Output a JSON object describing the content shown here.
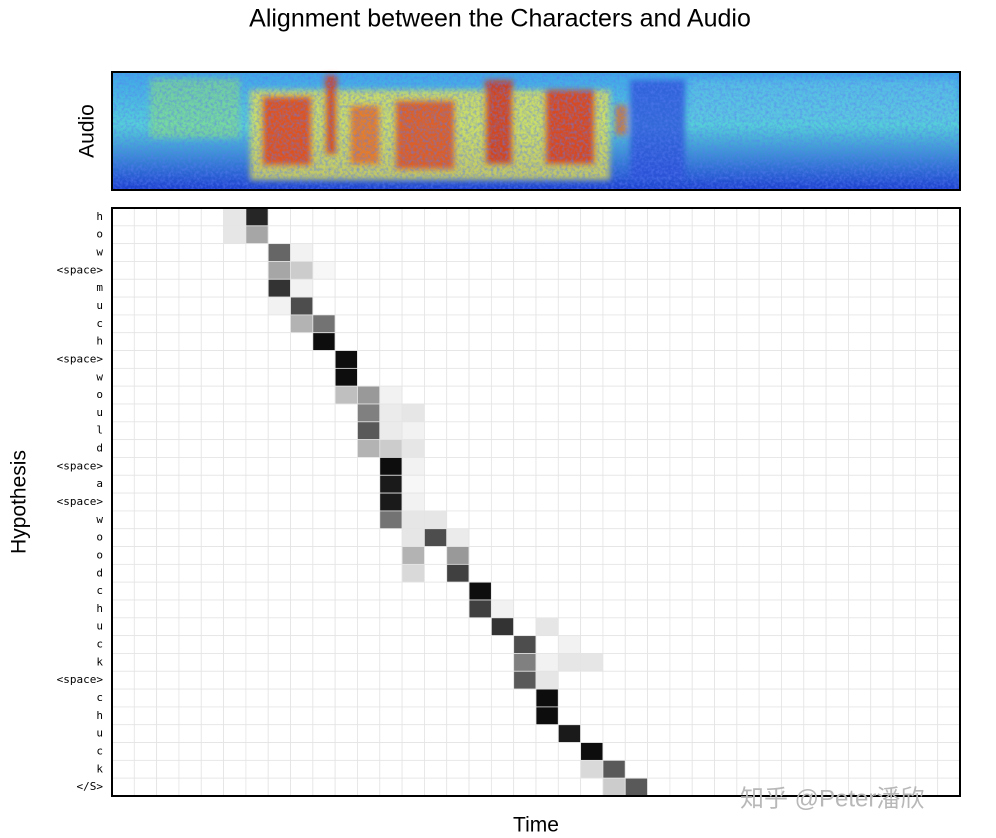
{
  "chart_data": {
    "type": "heatmap",
    "title": "Alignment between the Characters and Audio",
    "audio_label": "Audio",
    "x_label": "Time",
    "y_label": "Hypothesis",
    "watermark": "知乎 @Peter潘欣",
    "color_low": "#ffffff",
    "color_high": "#000000",
    "rows": [
      "h",
      "o",
      "w",
      "<space>",
      "m",
      "u",
      "c",
      "h",
      "<space>",
      "w",
      "o",
      "u",
      "l",
      "d",
      "<space>",
      "a",
      "<space>",
      "w",
      "o",
      "o",
      "d",
      "c",
      "h",
      "u",
      "c",
      "k",
      "<space>",
      "c",
      "h",
      "u",
      "c",
      "k",
      "</S>"
    ],
    "values": [
      [
        0,
        0,
        0,
        0,
        0,
        0.1,
        0.85,
        0,
        0,
        0,
        0,
        0,
        0,
        0,
        0,
        0,
        0,
        0,
        0,
        0,
        0,
        0,
        0,
        0,
        0,
        0,
        0,
        0,
        0,
        0,
        0,
        0,
        0,
        0,
        0,
        0,
        0,
        0
      ],
      [
        0,
        0,
        0,
        0,
        0,
        0.1,
        0.35,
        0,
        0,
        0,
        0,
        0,
        0,
        0,
        0,
        0,
        0,
        0,
        0,
        0,
        0,
        0,
        0,
        0,
        0,
        0,
        0,
        0,
        0,
        0,
        0,
        0,
        0,
        0,
        0,
        0,
        0,
        0
      ],
      [
        0,
        0,
        0,
        0,
        0,
        0,
        0,
        0.6,
        0.05,
        0,
        0,
        0,
        0,
        0,
        0,
        0,
        0,
        0,
        0,
        0,
        0,
        0,
        0,
        0,
        0,
        0,
        0,
        0,
        0,
        0,
        0,
        0,
        0,
        0,
        0,
        0,
        0,
        0
      ],
      [
        0,
        0,
        0,
        0,
        0,
        0,
        0,
        0.35,
        0.2,
        0.03,
        0,
        0,
        0,
        0,
        0,
        0,
        0,
        0,
        0,
        0,
        0,
        0,
        0,
        0,
        0,
        0,
        0,
        0,
        0,
        0,
        0,
        0,
        0,
        0,
        0,
        0,
        0,
        0
      ],
      [
        0,
        0,
        0,
        0,
        0,
        0,
        0,
        0.8,
        0.05,
        0,
        0,
        0,
        0,
        0,
        0,
        0,
        0,
        0,
        0,
        0,
        0,
        0,
        0,
        0,
        0,
        0,
        0,
        0,
        0,
        0,
        0,
        0,
        0,
        0,
        0,
        0,
        0,
        0
      ],
      [
        0,
        0,
        0,
        0,
        0,
        0,
        0,
        0.05,
        0.7,
        0,
        0,
        0,
        0,
        0,
        0,
        0,
        0,
        0,
        0,
        0,
        0,
        0,
        0,
        0,
        0,
        0,
        0,
        0,
        0,
        0,
        0,
        0,
        0,
        0,
        0,
        0,
        0,
        0
      ],
      [
        0,
        0,
        0,
        0,
        0,
        0,
        0,
        0,
        0.3,
        0.55,
        0,
        0,
        0,
        0,
        0,
        0,
        0,
        0,
        0,
        0,
        0,
        0,
        0,
        0,
        0,
        0,
        0,
        0,
        0,
        0,
        0,
        0,
        0,
        0,
        0,
        0,
        0,
        0
      ],
      [
        0,
        0,
        0,
        0,
        0,
        0,
        0,
        0,
        0,
        0.95,
        0,
        0,
        0,
        0,
        0,
        0,
        0,
        0,
        0,
        0,
        0,
        0,
        0,
        0,
        0,
        0,
        0,
        0,
        0,
        0,
        0,
        0,
        0,
        0,
        0,
        0,
        0,
        0
      ],
      [
        0,
        0,
        0,
        0,
        0,
        0,
        0,
        0,
        0,
        0,
        0.95,
        0,
        0,
        0,
        0,
        0,
        0,
        0,
        0,
        0,
        0,
        0,
        0,
        0,
        0,
        0,
        0,
        0,
        0,
        0,
        0,
        0,
        0,
        0,
        0,
        0,
        0,
        0
      ],
      [
        0,
        0,
        0,
        0,
        0,
        0,
        0,
        0,
        0,
        0,
        0.95,
        0,
        0,
        0,
        0,
        0,
        0,
        0,
        0,
        0,
        0,
        0,
        0,
        0,
        0,
        0,
        0,
        0,
        0,
        0,
        0,
        0,
        0,
        0,
        0,
        0,
        0,
        0
      ],
      [
        0,
        0,
        0,
        0,
        0,
        0,
        0,
        0,
        0,
        0,
        0.25,
        0.4,
        0.05,
        0,
        0,
        0,
        0,
        0,
        0,
        0,
        0,
        0,
        0,
        0,
        0,
        0,
        0,
        0,
        0,
        0,
        0,
        0,
        0,
        0,
        0,
        0,
        0,
        0
      ],
      [
        0,
        0,
        0,
        0,
        0,
        0,
        0,
        0,
        0,
        0,
        0,
        0.5,
        0.08,
        0.1,
        0,
        0,
        0,
        0,
        0,
        0,
        0,
        0,
        0,
        0,
        0,
        0,
        0,
        0,
        0,
        0,
        0,
        0,
        0,
        0,
        0,
        0,
        0,
        0
      ],
      [
        0,
        0,
        0,
        0,
        0,
        0,
        0,
        0,
        0,
        0,
        0,
        0.65,
        0.08,
        0.05,
        0,
        0,
        0,
        0,
        0,
        0,
        0,
        0,
        0,
        0,
        0,
        0,
        0,
        0,
        0,
        0,
        0,
        0,
        0,
        0,
        0,
        0,
        0,
        0
      ],
      [
        0,
        0,
        0,
        0,
        0,
        0,
        0,
        0,
        0,
        0,
        0,
        0.3,
        0.2,
        0.1,
        0,
        0,
        0,
        0,
        0,
        0,
        0,
        0,
        0,
        0,
        0,
        0,
        0,
        0,
        0,
        0,
        0,
        0,
        0,
        0,
        0,
        0,
        0,
        0
      ],
      [
        0,
        0,
        0,
        0,
        0,
        0,
        0,
        0,
        0,
        0,
        0,
        0,
        0.95,
        0.05,
        0,
        0,
        0,
        0,
        0,
        0,
        0,
        0,
        0,
        0,
        0,
        0,
        0,
        0,
        0,
        0,
        0,
        0,
        0,
        0,
        0,
        0,
        0,
        0
      ],
      [
        0,
        0,
        0,
        0,
        0,
        0,
        0,
        0,
        0,
        0,
        0,
        0,
        0.9,
        0.03,
        0,
        0,
        0,
        0,
        0,
        0,
        0,
        0,
        0,
        0,
        0,
        0,
        0,
        0,
        0,
        0,
        0,
        0,
        0,
        0,
        0,
        0,
        0,
        0
      ],
      [
        0,
        0,
        0,
        0,
        0,
        0,
        0,
        0,
        0,
        0,
        0,
        0,
        0.9,
        0.05,
        0,
        0,
        0,
        0,
        0,
        0,
        0,
        0,
        0,
        0,
        0,
        0,
        0,
        0,
        0,
        0,
        0,
        0,
        0,
        0,
        0,
        0,
        0,
        0
      ],
      [
        0,
        0,
        0,
        0,
        0,
        0,
        0,
        0,
        0,
        0,
        0,
        0,
        0.55,
        0.1,
        0.1,
        0,
        0,
        0,
        0,
        0,
        0,
        0,
        0,
        0,
        0,
        0,
        0,
        0,
        0,
        0,
        0,
        0,
        0,
        0,
        0,
        0,
        0,
        0
      ],
      [
        0,
        0,
        0,
        0,
        0,
        0,
        0,
        0,
        0,
        0,
        0,
        0,
        0,
        0.1,
        0.7,
        0.08,
        0,
        0,
        0,
        0,
        0,
        0,
        0,
        0,
        0,
        0,
        0,
        0,
        0,
        0,
        0,
        0,
        0,
        0,
        0,
        0,
        0,
        0
      ],
      [
        0,
        0,
        0,
        0,
        0,
        0,
        0,
        0,
        0,
        0,
        0,
        0,
        0,
        0.3,
        0,
        0.4,
        0,
        0,
        0,
        0,
        0,
        0,
        0,
        0,
        0,
        0,
        0,
        0,
        0,
        0,
        0,
        0,
        0,
        0,
        0,
        0,
        0,
        0
      ],
      [
        0,
        0,
        0,
        0,
        0,
        0,
        0,
        0,
        0,
        0,
        0,
        0,
        0,
        0.15,
        0,
        0.75,
        0,
        0,
        0,
        0,
        0,
        0,
        0,
        0,
        0,
        0,
        0,
        0,
        0,
        0,
        0,
        0,
        0,
        0,
        0,
        0,
        0,
        0
      ],
      [
        0,
        0,
        0,
        0,
        0,
        0,
        0,
        0,
        0,
        0,
        0,
        0,
        0,
        0,
        0,
        0,
        0.95,
        0,
        0,
        0,
        0,
        0,
        0,
        0,
        0,
        0,
        0,
        0,
        0,
        0,
        0,
        0,
        0,
        0,
        0,
        0,
        0,
        0
      ],
      [
        0,
        0,
        0,
        0,
        0,
        0,
        0,
        0,
        0,
        0,
        0,
        0,
        0,
        0,
        0,
        0,
        0.75,
        0.05,
        0,
        0,
        0,
        0,
        0,
        0,
        0,
        0,
        0,
        0,
        0,
        0,
        0,
        0,
        0,
        0,
        0,
        0,
        0,
        0
      ],
      [
        0,
        0,
        0,
        0,
        0,
        0,
        0,
        0,
        0,
        0,
        0,
        0,
        0,
        0,
        0,
        0,
        0,
        0.8,
        0,
        0.1,
        0,
        0,
        0,
        0,
        0,
        0,
        0,
        0,
        0,
        0,
        0,
        0,
        0,
        0,
        0,
        0,
        0,
        0
      ],
      [
        0,
        0,
        0,
        0,
        0,
        0,
        0,
        0,
        0,
        0,
        0,
        0,
        0,
        0,
        0,
        0,
        0,
        0,
        0.7,
        0,
        0.05,
        0,
        0,
        0,
        0,
        0,
        0,
        0,
        0,
        0,
        0,
        0,
        0,
        0,
        0,
        0,
        0,
        0
      ],
      [
        0,
        0,
        0,
        0,
        0,
        0,
        0,
        0,
        0,
        0,
        0,
        0,
        0,
        0,
        0,
        0,
        0,
        0,
        0.5,
        0.05,
        0.1,
        0.1,
        0,
        0,
        0,
        0,
        0,
        0,
        0,
        0,
        0,
        0,
        0,
        0,
        0,
        0,
        0,
        0
      ],
      [
        0,
        0,
        0,
        0,
        0,
        0,
        0,
        0,
        0,
        0,
        0,
        0,
        0,
        0,
        0,
        0,
        0,
        0,
        0.65,
        0.1,
        0,
        0,
        0,
        0,
        0,
        0,
        0,
        0,
        0,
        0,
        0,
        0,
        0,
        0,
        0,
        0,
        0,
        0
      ],
      [
        0,
        0,
        0,
        0,
        0,
        0,
        0,
        0,
        0,
        0,
        0,
        0,
        0,
        0,
        0,
        0,
        0,
        0,
        0,
        0.95,
        0,
        0,
        0,
        0,
        0,
        0,
        0,
        0,
        0,
        0,
        0,
        0,
        0,
        0,
        0,
        0,
        0,
        0
      ],
      [
        0,
        0,
        0,
        0,
        0,
        0,
        0,
        0,
        0,
        0,
        0,
        0,
        0,
        0,
        0,
        0,
        0,
        0,
        0,
        0.95,
        0,
        0,
        0,
        0,
        0,
        0,
        0,
        0,
        0,
        0,
        0,
        0,
        0,
        0,
        0,
        0,
        0,
        0
      ],
      [
        0,
        0,
        0,
        0,
        0,
        0,
        0,
        0,
        0,
        0,
        0,
        0,
        0,
        0,
        0,
        0,
        0,
        0,
        0,
        0,
        0.9,
        0,
        0,
        0,
        0,
        0,
        0,
        0,
        0,
        0,
        0,
        0,
        0,
        0,
        0,
        0,
        0,
        0
      ],
      [
        0,
        0,
        0,
        0,
        0,
        0,
        0,
        0,
        0,
        0,
        0,
        0,
        0,
        0,
        0,
        0,
        0,
        0,
        0,
        0,
        0,
        0.95,
        0,
        0,
        0,
        0,
        0,
        0,
        0,
        0,
        0,
        0,
        0,
        0,
        0,
        0,
        0,
        0
      ],
      [
        0,
        0,
        0,
        0,
        0,
        0,
        0,
        0,
        0,
        0,
        0,
        0,
        0,
        0,
        0,
        0,
        0,
        0,
        0,
        0,
        0,
        0.15,
        0.65,
        0,
        0,
        0,
        0,
        0,
        0,
        0,
        0,
        0,
        0,
        0,
        0,
        0,
        0,
        0
      ],
      [
        0,
        0,
        0,
        0,
        0,
        0,
        0,
        0,
        0,
        0,
        0,
        0,
        0,
        0,
        0,
        0,
        0,
        0,
        0,
        0,
        0,
        0,
        0.2,
        0.65,
        0,
        0,
        0,
        0,
        0,
        0,
        0,
        0,
        0,
        0,
        0,
        0,
        0,
        0
      ]
    ]
  }
}
